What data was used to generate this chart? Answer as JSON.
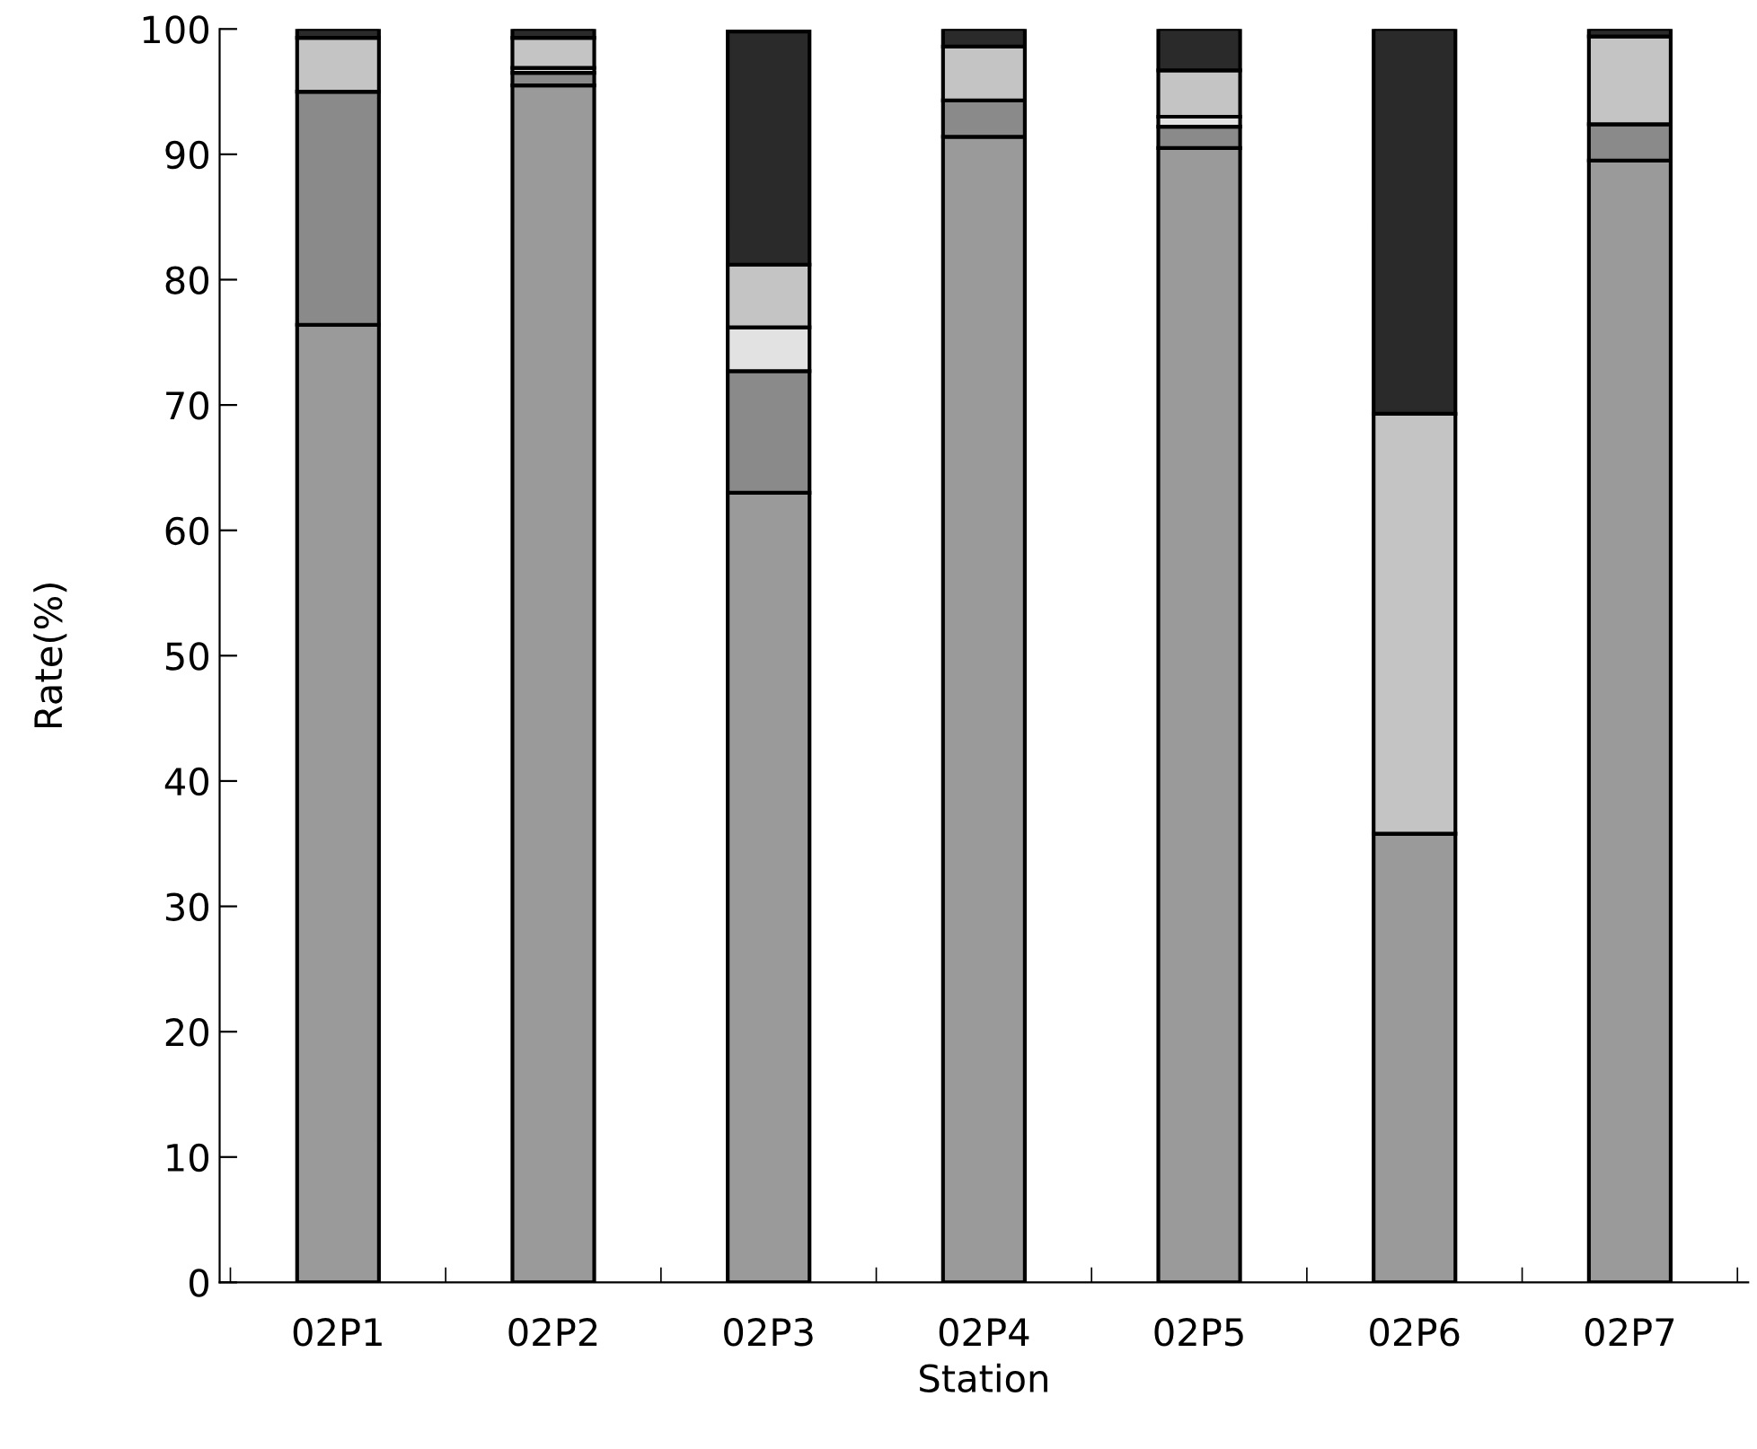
{
  "chart_data": {
    "type": "bar",
    "stacked": true,
    "xlabel": "Station",
    "ylabel": "Rate(%)",
    "categories": [
      "02P1",
      "02P2",
      "02P3",
      "02P4",
      "02P5",
      "02P6",
      "02P7"
    ],
    "ylim": [
      0,
      100
    ],
    "yticks": [
      0,
      10,
      20,
      30,
      40,
      50,
      60,
      70,
      80,
      90,
      100
    ],
    "series": [
      {
        "color": "#9a9a9a",
        "values": [
          76.4,
          95.5,
          63.0,
          91.4,
          90.5,
          35.8,
          89.5
        ]
      },
      {
        "color": "#8a8a8a",
        "values": [
          18.6,
          1.0,
          9.7,
          2.9,
          1.7,
          0,
          2.9
        ]
      },
      {
        "color": "#e2e2e2",
        "values": [
          0,
          0.4,
          3.5,
          0,
          0.8,
          0,
          0
        ]
      },
      {
        "color": "#c4c4c4",
        "values": [
          4.3,
          2.4,
          5.0,
          4.3,
          3.7,
          33.5,
          7.0
        ]
      },
      {
        "color": "#2a2a2a",
        "values": [
          0.7,
          0.7,
          18.6,
          1.4,
          3.3,
          30.7,
          0.6
        ]
      }
    ]
  }
}
